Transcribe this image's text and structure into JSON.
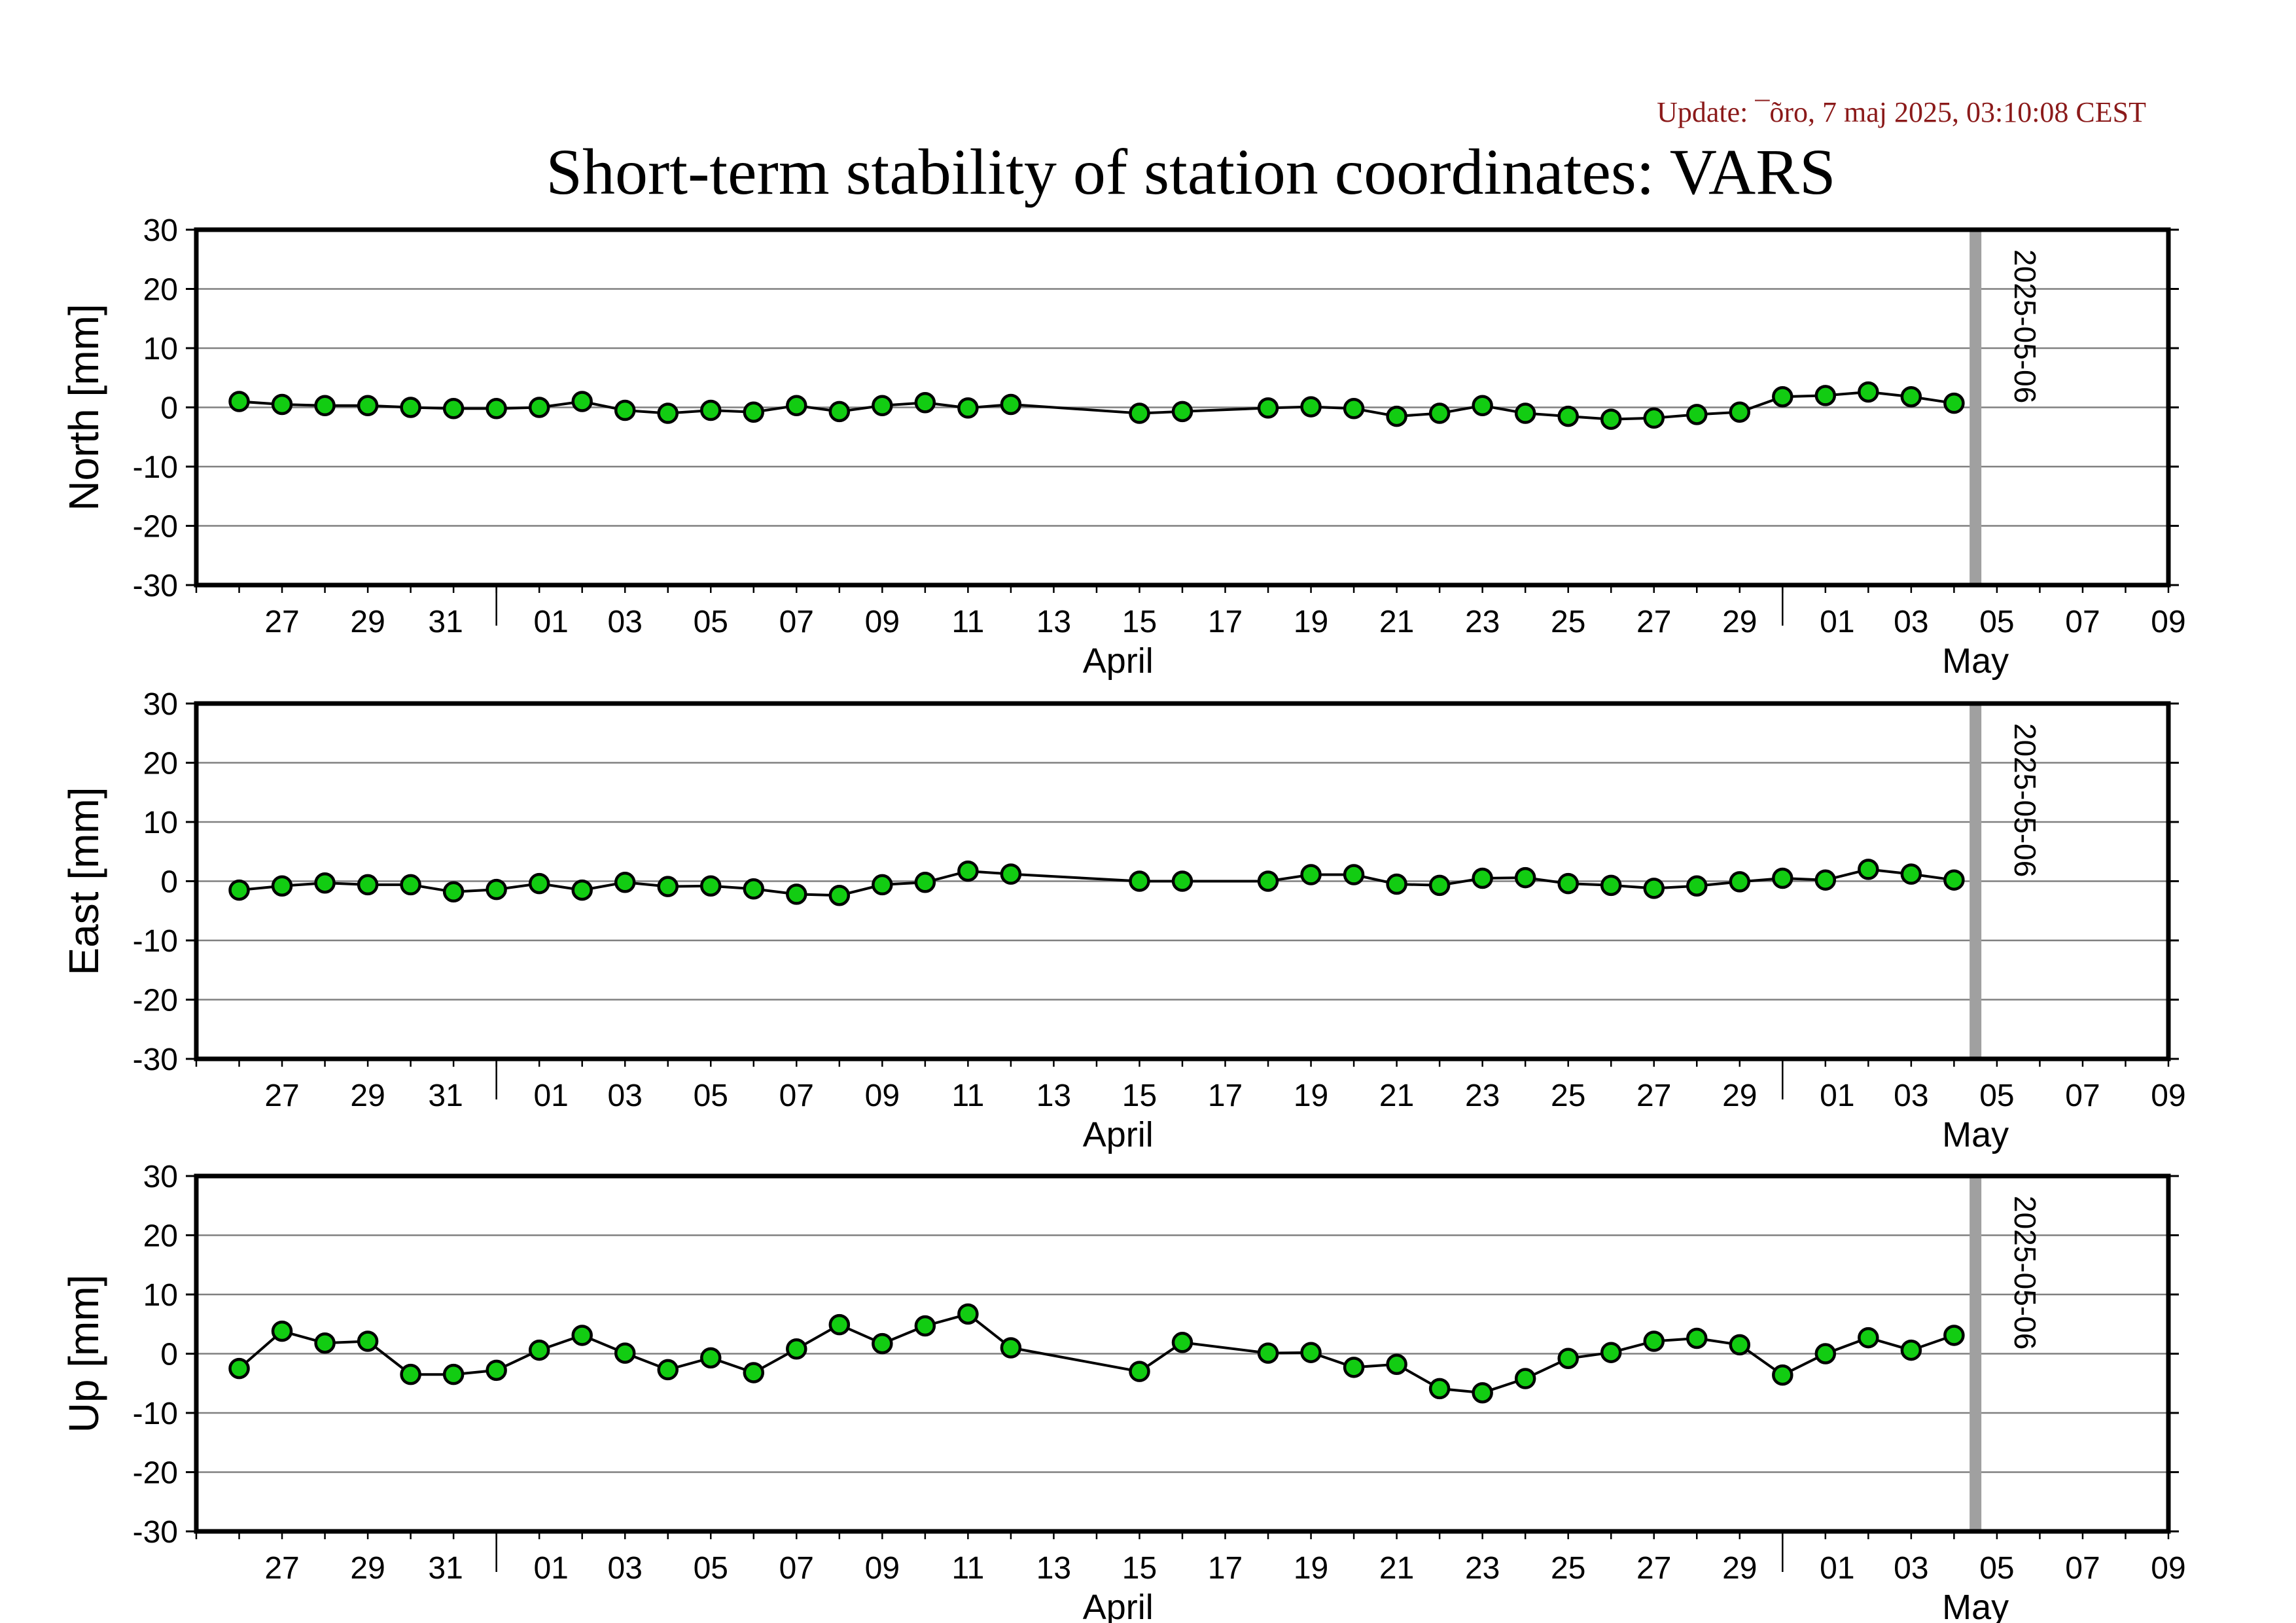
{
  "update_text": "Update: ¯õro, 7 maj 2025, 03:10:08 CEST",
  "title": "Short-term stability of station coordinates: VARS",
  "colors": {
    "marker_fill": "#12cc12",
    "marker_stroke": "#000000",
    "line": "#000000",
    "gridline": "#808080",
    "today_line": "#a0a0a0",
    "update_text": "#8b1a1a"
  },
  "chart_data": [
    {
      "type": "line",
      "ylabel": "North [mm]",
      "ylim": [
        -30,
        30
      ],
      "yticks": [
        30,
        20,
        10,
        0,
        -10,
        -20,
        -30
      ],
      "grid": true,
      "xlim": [
        "2025-03-25",
        "2025-05-10"
      ],
      "x_tick_labels": [
        "27",
        "29",
        "31",
        "01",
        "03",
        "05",
        "07",
        "09",
        "11",
        "13",
        "15",
        "17",
        "19",
        "21",
        "23",
        "25",
        "27",
        "29",
        "01",
        "03",
        "05",
        "07",
        "09"
      ],
      "month_labels": [
        "April",
        "May"
      ],
      "marker_label": "2025-05-06",
      "series": [
        {
          "x": [
            "2025-03-26",
            "2025-03-27",
            "2025-03-28",
            "2025-03-29",
            "2025-03-30",
            "2025-03-31",
            "2025-04-01",
            "2025-04-02",
            "2025-04-03",
            "2025-04-04",
            "2025-04-05",
            "2025-04-06",
            "2025-04-07",
            "2025-04-08",
            "2025-04-09",
            "2025-04-10",
            "2025-04-11",
            "2025-04-12",
            "2025-04-13",
            "2025-04-16",
            "2025-04-17",
            "2025-04-19",
            "2025-04-20",
            "2025-04-21",
            "2025-04-22",
            "2025-04-23",
            "2025-04-24",
            "2025-04-25",
            "2025-04-26",
            "2025-04-27",
            "2025-04-28",
            "2025-04-29",
            "2025-04-30",
            "2025-05-01",
            "2025-05-02",
            "2025-05-03",
            "2025-05-04",
            "2025-05-05"
          ],
          "y": [
            1.0,
            0.5,
            0.3,
            0.3,
            0.0,
            -0.2,
            -0.2,
            0.0,
            1.0,
            -0.5,
            -1.0,
            -0.5,
            -0.8,
            0.3,
            -0.7,
            0.3,
            0.8,
            -0.1,
            0.5,
            -1.0,
            -0.7,
            -0.1,
            0.1,
            -0.2,
            -1.5,
            -1.0,
            0.3,
            -1.0,
            -1.5,
            -2.0,
            -1.8,
            -1.2,
            -0.8,
            1.8,
            2.0,
            2.6,
            1.8,
            0.7
          ]
        }
      ]
    },
    {
      "type": "line",
      "ylabel": "East [mm]",
      "ylim": [
        -30,
        30
      ],
      "yticks": [
        30,
        20,
        10,
        0,
        -10,
        -20,
        -30
      ],
      "grid": true,
      "xlim": [
        "2025-03-25",
        "2025-05-10"
      ],
      "x_tick_labels": [
        "27",
        "29",
        "31",
        "01",
        "03",
        "05",
        "07",
        "09",
        "11",
        "13",
        "15",
        "17",
        "19",
        "21",
        "23",
        "25",
        "27",
        "29",
        "01",
        "03",
        "05",
        "07",
        "09"
      ],
      "month_labels": [
        "April",
        "May"
      ],
      "marker_label": "2025-05-06",
      "series": [
        {
          "x": [
            "2025-03-26",
            "2025-03-27",
            "2025-03-28",
            "2025-03-29",
            "2025-03-30",
            "2025-03-31",
            "2025-04-01",
            "2025-04-02",
            "2025-04-03",
            "2025-04-04",
            "2025-04-05",
            "2025-04-06",
            "2025-04-07",
            "2025-04-08",
            "2025-04-09",
            "2025-04-10",
            "2025-04-11",
            "2025-04-12",
            "2025-04-13",
            "2025-04-16",
            "2025-04-17",
            "2025-04-19",
            "2025-04-20",
            "2025-04-21",
            "2025-04-22",
            "2025-04-23",
            "2025-04-24",
            "2025-04-25",
            "2025-04-26",
            "2025-04-27",
            "2025-04-28",
            "2025-04-29",
            "2025-04-30",
            "2025-05-01",
            "2025-05-02",
            "2025-05-03",
            "2025-05-04",
            "2025-05-05"
          ],
          "y": [
            -1.5,
            -0.8,
            -0.3,
            -0.6,
            -0.6,
            -1.8,
            -1.4,
            -0.4,
            -1.5,
            -0.2,
            -0.9,
            -0.8,
            -1.3,
            -2.2,
            -2.4,
            -0.6,
            -0.2,
            1.7,
            1.2,
            0.0,
            0.0,
            0.0,
            1.1,
            1.1,
            -0.5,
            -0.7,
            0.5,
            0.6,
            -0.4,
            -0.7,
            -1.2,
            -0.8,
            -0.1,
            0.5,
            0.2,
            2.0,
            1.2,
            0.2
          ]
        }
      ]
    },
    {
      "type": "line",
      "ylabel": "Up [mm]",
      "ylim": [
        -30,
        30
      ],
      "yticks": [
        30,
        20,
        10,
        0,
        -10,
        -20,
        -30
      ],
      "grid": true,
      "xlim": [
        "2025-03-25",
        "2025-05-10"
      ],
      "x_tick_labels": [
        "27",
        "29",
        "31",
        "01",
        "03",
        "05",
        "07",
        "09",
        "11",
        "13",
        "15",
        "17",
        "19",
        "21",
        "23",
        "25",
        "27",
        "29",
        "01",
        "03",
        "05",
        "07",
        "09"
      ],
      "month_labels": [
        "April",
        "May"
      ],
      "marker_label": "2025-05-06",
      "series": [
        {
          "x": [
            "2025-03-26",
            "2025-03-27",
            "2025-03-28",
            "2025-03-29",
            "2025-03-30",
            "2025-03-31",
            "2025-04-01",
            "2025-04-02",
            "2025-04-03",
            "2025-04-04",
            "2025-04-05",
            "2025-04-06",
            "2025-04-07",
            "2025-04-08",
            "2025-04-09",
            "2025-04-10",
            "2025-04-11",
            "2025-04-12",
            "2025-04-13",
            "2025-04-16",
            "2025-04-17",
            "2025-04-19",
            "2025-04-20",
            "2025-04-21",
            "2025-04-22",
            "2025-04-23",
            "2025-04-24",
            "2025-04-25",
            "2025-04-26",
            "2025-04-27",
            "2025-04-28",
            "2025-04-29",
            "2025-04-30",
            "2025-05-01",
            "2025-05-02",
            "2025-05-03",
            "2025-05-04",
            "2025-05-05"
          ],
          "y": [
            -2.5,
            3.8,
            1.8,
            2.1,
            -3.5,
            -3.5,
            -2.8,
            0.6,
            3.1,
            0.1,
            -2.7,
            -0.7,
            -3.2,
            0.8,
            4.9,
            1.7,
            4.7,
            6.7,
            1.0,
            -3.0,
            1.9,
            0.1,
            0.2,
            -2.3,
            -1.8,
            -5.9,
            -6.6,
            -4.2,
            -0.8,
            0.2,
            2.1,
            2.6,
            1.5,
            -3.6,
            0.0,
            2.7,
            0.6,
            3.1
          ]
        }
      ]
    }
  ]
}
